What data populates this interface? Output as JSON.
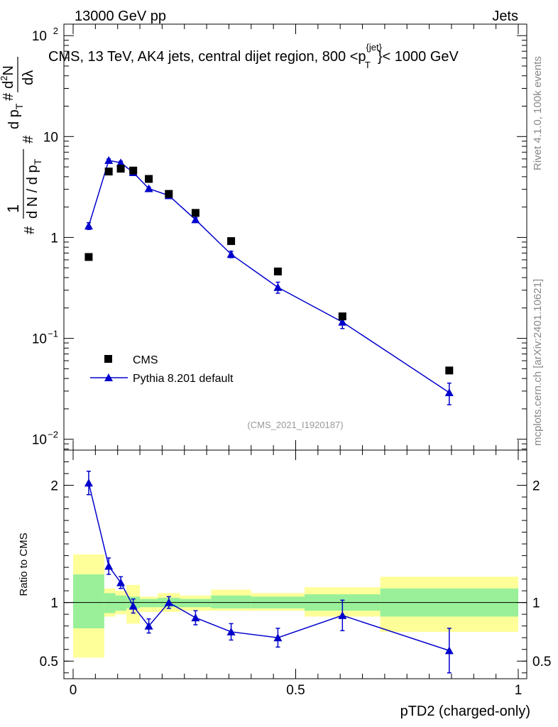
{
  "header": {
    "left": "13000 GeV pp",
    "right": "Jets"
  },
  "plot": {
    "title_prefix": "CMS, 13 TeV, AK4 jets, central dijet region, 800 <p",
    "title_sup": "{jet}",
    "title_sub": "T",
    "title_suffix": "}< 1000 GeV",
    "analysis_id": "(CMS_2021_I1920187)",
    "ylabel_parts": [
      "#",
      "1",
      "d N / d p",
      "T",
      "#",
      "d p",
      "T",
      "#",
      "d",
      "2",
      "N",
      "dλ"
    ],
    "ratio_ylabel": "Ratio to CMS",
    "xlabel": "pTD2 (charged-only)",
    "side_label_top": "Rivet 4.1.0,  100k events",
    "side_label_bottom": "mcplots.cern.ch [arXiv:2401.10621]"
  },
  "colors": {
    "mc": "#0000cc",
    "data": "#000000",
    "band_inner": "#99f099",
    "band_outer": "#ffff99"
  },
  "chart_data": {
    "type": "scatter",
    "x_tick_labels": [
      "0",
      "0.5",
      "1"
    ],
    "x_ticks": [
      0,
      0.5,
      1
    ],
    "main_y_ticks": [
      {
        "v": 0.01,
        "base": "10",
        "exp": "−2"
      },
      {
        "v": 0.1,
        "base": "10",
        "exp": "−1"
      },
      {
        "v": 1,
        "base": "1",
        "exp": ""
      },
      {
        "v": 10,
        "base": "10",
        "exp": ""
      },
      {
        "v": 100,
        "base": "10",
        "exp": "2"
      }
    ],
    "ratio_y_ticks": [
      {
        "v": 0.5,
        "label": "0.5"
      },
      {
        "v": 1,
        "label": "1"
      },
      {
        "v": 2,
        "label": "2"
      }
    ],
    "xlim": [
      0,
      1
    ],
    "ylim_main": [
      0.0078,
      130
    ],
    "ylim_ratio": [
      0.35,
      2.3
    ],
    "series": [
      {
        "name": "CMS",
        "marker": "square",
        "x": [
          0.035,
          0.08,
          0.107,
          0.135,
          0.17,
          0.215,
          0.275,
          0.355,
          0.46,
          0.605,
          0.845
        ],
        "y": [
          0.64,
          4.5,
          4.8,
          4.6,
          3.8,
          2.7,
          1.75,
          0.92,
          0.46,
          0.165,
          0.048
        ]
      },
      {
        "name": "Pythia 8.201 default",
        "marker": "triangle",
        "x": [
          0.035,
          0.08,
          0.107,
          0.135,
          0.17,
          0.215,
          0.275,
          0.355,
          0.46,
          0.605,
          0.845
        ],
        "y": [
          1.3,
          5.8,
          5.5,
          4.4,
          3.05,
          2.6,
          1.5,
          0.68,
          0.32,
          0.145,
          0.029
        ],
        "yerr": [
          0.1,
          0.2,
          0.2,
          0.15,
          0.1,
          0.08,
          0.07,
          0.05,
          0.04,
          0.02,
          0.007
        ]
      }
    ],
    "ratio": {
      "x": [
        0.035,
        0.08,
        0.107,
        0.135,
        0.17,
        0.215,
        0.275,
        0.355,
        0.46,
        0.605,
        0.845
      ],
      "y": [
        2.02,
        1.31,
        1.17,
        0.97,
        0.8,
        1.0,
        0.87,
        0.75,
        0.7,
        0.89,
        0.59
      ],
      "yerr": [
        0.1,
        0.07,
        0.05,
        0.06,
        0.06,
        0.05,
        0.06,
        0.07,
        0.08,
        0.13,
        0.19
      ]
    },
    "bands": [
      {
        "x0": 0.0,
        "x1": 0.07,
        "in_lo": 0.78,
        "in_hi": 1.24,
        "out_lo": 0.53,
        "out_hi": 1.41
      },
      {
        "x0": 0.07,
        "x1": 0.095,
        "in_lo": 0.91,
        "in_hi": 1.08,
        "out_lo": 0.88,
        "out_hi": 1.12
      },
      {
        "x0": 0.095,
        "x1": 0.12,
        "in_lo": 0.93,
        "in_hi": 1.06,
        "out_lo": 0.9,
        "out_hi": 1.1
      },
      {
        "x0": 0.12,
        "x1": 0.15,
        "in_lo": 0.95,
        "in_hi": 1.05,
        "out_lo": 0.82,
        "out_hi": 1.15
      },
      {
        "x0": 0.15,
        "x1": 0.19,
        "in_lo": 0.96,
        "in_hi": 1.03,
        "out_lo": 0.92,
        "out_hi": 1.05
      },
      {
        "x0": 0.19,
        "x1": 0.24,
        "in_lo": 0.96,
        "in_hi": 1.04,
        "out_lo": 0.92,
        "out_hi": 1.08
      },
      {
        "x0": 0.24,
        "x1": 0.31,
        "in_lo": 0.96,
        "in_hi": 1.03,
        "out_lo": 0.93,
        "out_hi": 1.06
      },
      {
        "x0": 0.31,
        "x1": 0.4,
        "in_lo": 0.95,
        "in_hi": 1.06,
        "out_lo": 0.93,
        "out_hi": 1.11
      },
      {
        "x0": 0.4,
        "x1": 0.52,
        "in_lo": 0.95,
        "in_hi": 1.05,
        "out_lo": 0.93,
        "out_hi": 1.08
      },
      {
        "x0": 0.52,
        "x1": 0.69,
        "in_lo": 0.93,
        "in_hi": 1.07,
        "out_lo": 0.88,
        "out_hi": 1.13
      },
      {
        "x0": 0.69,
        "x1": 1.0,
        "in_lo": 0.88,
        "in_hi": 1.12,
        "out_lo": 0.75,
        "out_hi": 1.22
      }
    ]
  }
}
